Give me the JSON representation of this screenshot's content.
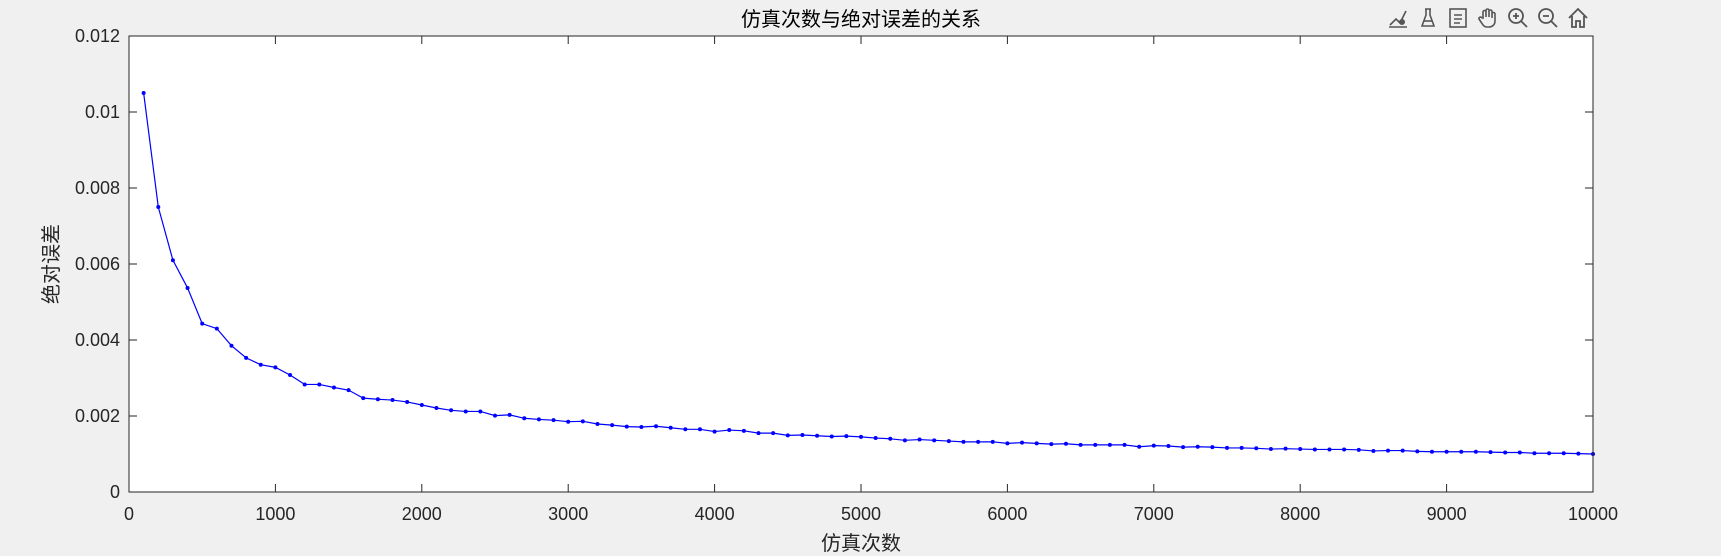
{
  "toolbar": {
    "icons": [
      "brush-icon",
      "data-tip-icon",
      "legend-icon",
      "pan-hand-icon",
      "zoom-in-icon",
      "zoom-out-icon",
      "home-icon"
    ]
  },
  "colors": {
    "background": "#f0f0f0",
    "axes_background": "#ffffff",
    "axis_line": "#262626",
    "series": "#0000ff"
  },
  "chart_data": {
    "type": "line",
    "title": "仿真次数与绝对误差的关系",
    "xlabel": "仿真次数",
    "ylabel": "绝对误差",
    "xlim": [
      0,
      10000
    ],
    "ylim": [
      0,
      0.012
    ],
    "xticks": [
      0,
      1000,
      2000,
      3000,
      4000,
      5000,
      6000,
      7000,
      8000,
      9000,
      10000
    ],
    "xtick_labels": [
      "0",
      "1000",
      "2000",
      "3000",
      "4000",
      "5000",
      "6000",
      "7000",
      "8000",
      "9000",
      "10000"
    ],
    "yticks": [
      0,
      0.002,
      0.004,
      0.006,
      0.008,
      0.01,
      0.012
    ],
    "ytick_labels": [
      "0",
      "0.002",
      "0.004",
      "0.006",
      "0.008",
      "0.01",
      "0.012"
    ],
    "grid": false,
    "marker": "dot",
    "series": [
      {
        "x": [
          100,
          200,
          300,
          400,
          500,
          600,
          700,
          800,
          900,
          1000,
          1100,
          1200,
          1300,
          1400,
          1500,
          1600,
          1700,
          1800,
          1900,
          2000,
          2100,
          2200,
          2300,
          2400,
          2500,
          2600,
          2700,
          2800,
          2900,
          3000,
          3100,
          3200,
          3300,
          3400,
          3500,
          3600,
          3700,
          3800,
          3900,
          4000,
          4100,
          4200,
          4300,
          4400,
          4500,
          4600,
          4700,
          4800,
          4900,
          5000,
          5100,
          5200,
          5300,
          5400,
          5500,
          5600,
          5700,
          5800,
          5900,
          6000,
          6100,
          6200,
          6300,
          6400,
          6500,
          6600,
          6700,
          6800,
          6900,
          7000,
          7100,
          7200,
          7300,
          7400,
          7500,
          7600,
          7700,
          7800,
          7900,
          8000,
          8100,
          8200,
          8300,
          8400,
          8500,
          8600,
          8700,
          8800,
          8900,
          9000,
          9100,
          9200,
          9300,
          9400,
          9500,
          9600,
          9700,
          9800,
          9900,
          10000
        ],
        "values": [
          0.0105,
          0.0075,
          0.0061,
          0.00537,
          0.00443,
          0.0043,
          0.00385,
          0.00353,
          0.00335,
          0.00328,
          0.00308,
          0.00283,
          0.00283,
          0.00275,
          0.00268,
          0.00247,
          0.00244,
          0.00242,
          0.00237,
          0.00229,
          0.00221,
          0.00215,
          0.00212,
          0.00212,
          0.00201,
          0.00203,
          0.00194,
          0.00191,
          0.00189,
          0.00185,
          0.00186,
          0.00179,
          0.00176,
          0.00172,
          0.00171,
          0.00173,
          0.00169,
          0.00165,
          0.00165,
          0.00159,
          0.00163,
          0.00161,
          0.00155,
          0.00155,
          0.00149,
          0.0015,
          0.00148,
          0.00146,
          0.00147,
          0.00145,
          0.00142,
          0.0014,
          0.00136,
          0.00138,
          0.00136,
          0.00134,
          0.00132,
          0.00132,
          0.00132,
          0.00128,
          0.0013,
          0.00128,
          0.00126,
          0.00127,
          0.00124,
          0.00124,
          0.00124,
          0.00124,
          0.00119,
          0.00122,
          0.00121,
          0.00118,
          0.00119,
          0.00118,
          0.00116,
          0.00116,
          0.00115,
          0.00113,
          0.00114,
          0.00113,
          0.00112,
          0.00112,
          0.00112,
          0.00111,
          0.00108,
          0.00109,
          0.00109,
          0.00107,
          0.00106,
          0.00106,
          0.00106,
          0.00106,
          0.00105,
          0.00104,
          0.00104,
          0.00102,
          0.00102,
          0.00102,
          0.00101,
          0.001
        ]
      }
    ]
  }
}
